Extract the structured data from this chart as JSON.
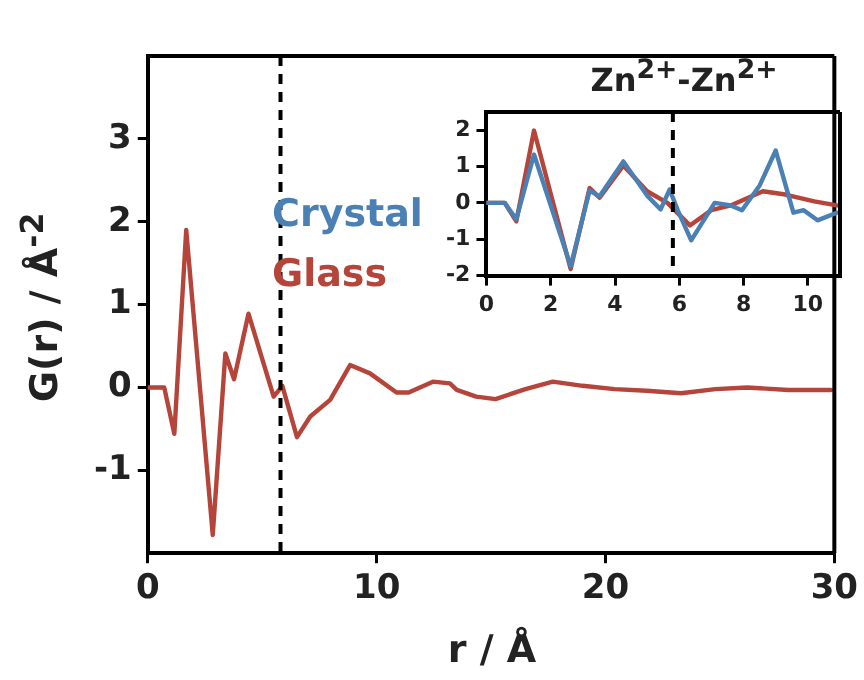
{
  "chart_data": [
    {
      "type": "line",
      "xlabel": "r / Å",
      "ylabel": "G(r) / Å$^{-2}$",
      "xlim": [
        0,
        30
      ],
      "xticks": [
        0,
        10,
        20,
        30
      ],
      "ylim": [
        -2,
        4
      ],
      "yticks": [
        -1,
        0,
        1,
        2,
        3
      ],
      "grid": false,
      "legend": false,
      "marker": "none",
      "line_style": "solid",
      "x": [
        0,
        0.72,
        1.16,
        1.68,
        2.84,
        3.39,
        3.77,
        4.4,
        5.5,
        5.88,
        6.52,
        7.1,
        7.97,
        8.84,
        9.71,
        10.87,
        11.4,
        12.46,
        13.2,
        13.5,
        14.35,
        15.2,
        16.5,
        17.7,
        19,
        20.4,
        21.8,
        23.3,
        24.8,
        26.2,
        28,
        29.85
      ],
      "series": [
        {
          "color": "#b5443a",
          "values": [
            0,
            0,
            -0.56,
            1.9,
            -1.78,
            0.41,
            0.1,
            0.89,
            -0.11,
            0.02,
            -0.6,
            -0.35,
            -0.15,
            0.27,
            0.17,
            -0.06,
            -0.06,
            0.07,
            0.05,
            -0.03,
            -0.11,
            -0.14,
            -0.02,
            0.07,
            0.02,
            -0.02,
            -0.04,
            -0.07,
            -0.02,
            0,
            -0.03,
            -0.03
          ]
        }
      ],
      "ref_lines": [
        {
          "axis": "x",
          "value": 5.8,
          "line_style": "dashed",
          "color": "#000000"
        }
      ]
    },
    {
      "type": "line",
      "title": "Zn$^{2+}$-Zn$^{2+}$",
      "xlim": [
        0,
        11
      ],
      "xticks": [
        0,
        2,
        4,
        6,
        8,
        10
      ],
      "ylim": [
        -2,
        2.5
      ],
      "yticks": [
        -2,
        -1,
        0,
        1,
        2
      ],
      "grid": false,
      "legend": "left",
      "marker": "none",
      "line_style": "solid",
      "series": [
        {
          "name": "Crystal",
          "color": "#4a80b4",
          "x": [
            0,
            0.57,
            0.93,
            1.48,
            2.62,
            3.21,
            3.52,
            4.26,
            5.0,
            5.42,
            5.7,
            5.95,
            6.37,
            7.1,
            7.6,
            7.95,
            8.5,
            9.0,
            9.55,
            9.87,
            10.3,
            10.9
          ],
          "values": [
            0,
            0,
            -0.45,
            1.33,
            -1.74,
            0.34,
            0.18,
            1.14,
            0.2,
            -0.18,
            0.37,
            -0.2,
            -1.03,
            0,
            -0.07,
            -0.2,
            0.48,
            1.44,
            -0.27,
            -0.2,
            -0.48,
            -0.27
          ]
        },
        {
          "name": "Glass",
          "color": "#b5443a",
          "x": [
            0,
            0.57,
            0.93,
            1.48,
            2.62,
            3.21,
            3.52,
            4.26,
            5.0,
            5.63,
            6.33,
            7.0,
            7.6,
            8.6,
            9.3,
            10.2,
            10.9
          ],
          "values": [
            0,
            0,
            -0.51,
            1.99,
            -1.82,
            0.41,
            0.14,
            1.03,
            0.32,
            0,
            -0.62,
            -0.2,
            -0.07,
            0.32,
            0.23,
            0.04,
            -0.07
          ]
        }
      ],
      "ref_lines": [
        {
          "axis": "x",
          "value": 5.8,
          "line_style": "dashed",
          "color": "#000000"
        }
      ]
    }
  ]
}
